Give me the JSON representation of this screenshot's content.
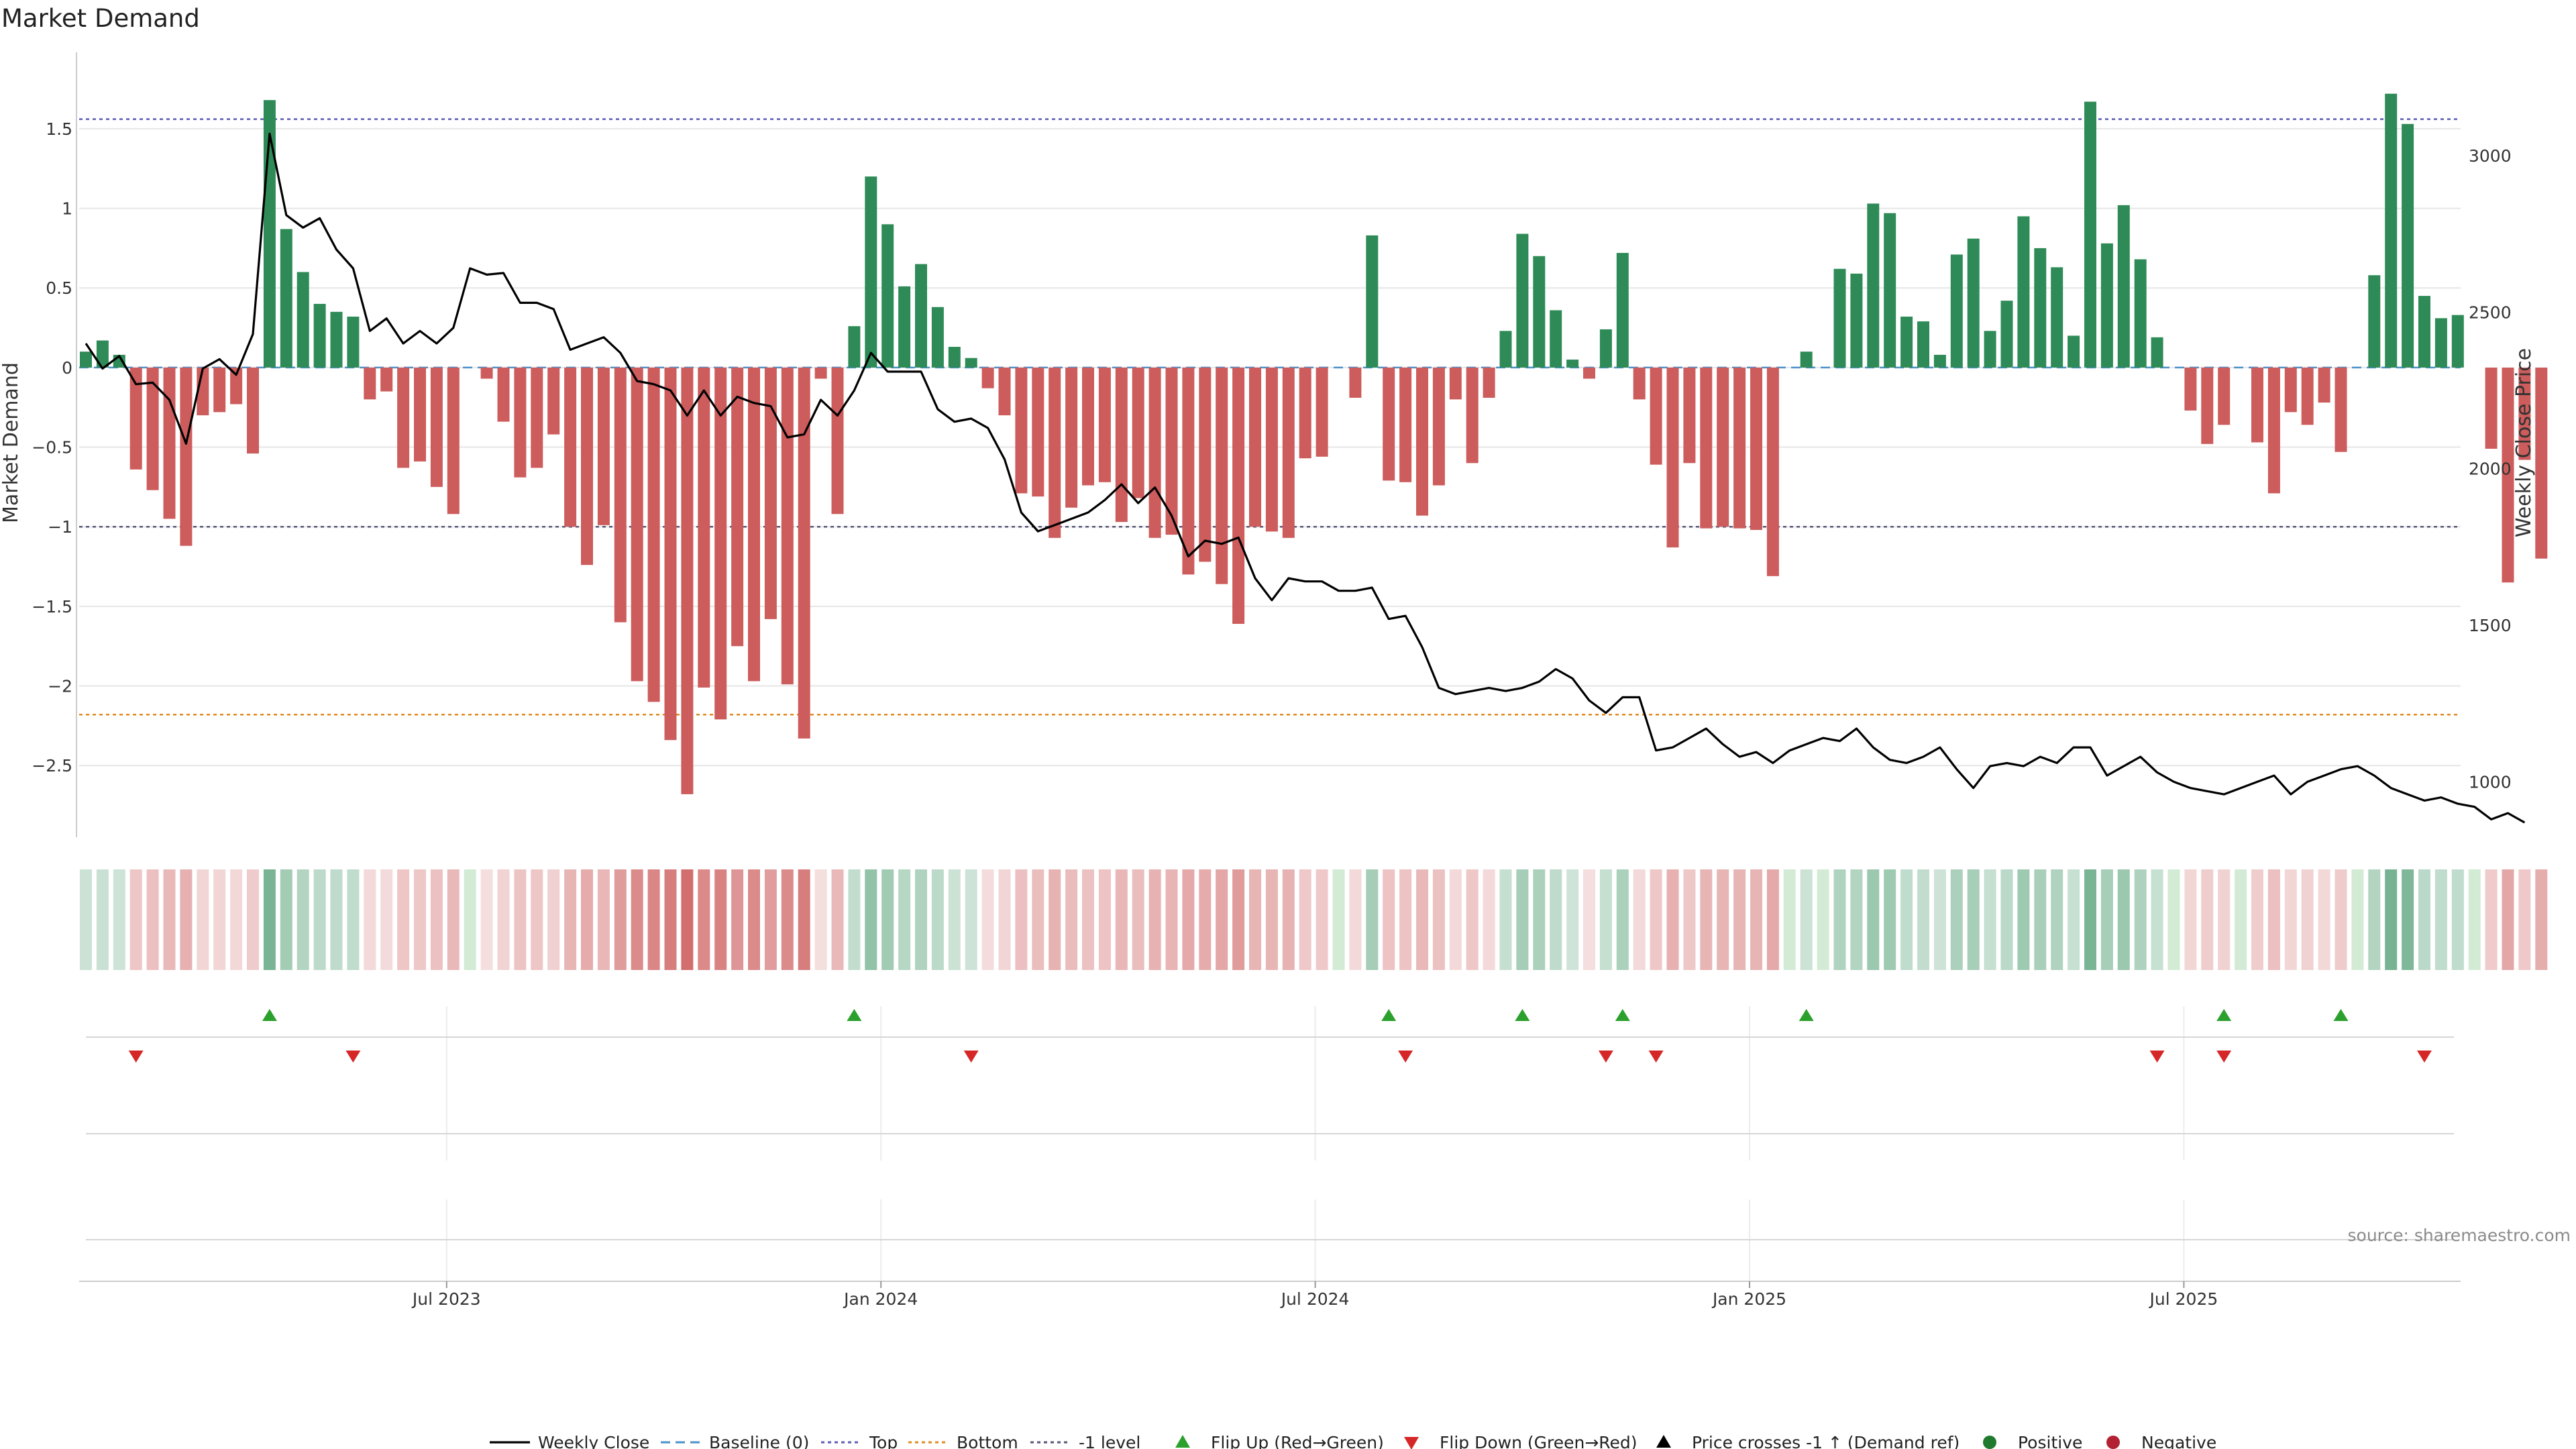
{
  "title": "Market Demand",
  "source": "source: sharemaestro.com",
  "colors": {
    "positive": "#2e8b57",
    "negative": "#cd5c5c",
    "price": "#000000",
    "top_line": "#5b5bb5",
    "bottom_line": "#e08a1e",
    "minus1_line": "#555577",
    "flip_up": "#2ca02c",
    "flip_down": "#d62728",
    "grid": "#e6e6e6",
    "axis": "#cccccc"
  },
  "chart_data": {
    "type": "bar",
    "title": "Market Demand",
    "ylabel": "Market Demand",
    "y2label": "Weekly Close Price",
    "ylim": [
      -2.95,
      1.98
    ],
    "y2lim": [
      823,
      3330
    ],
    "yticks": [
      1.5,
      1,
      0.5,
      0,
      -0.5,
      -1,
      -1.5,
      -2,
      -2.5
    ],
    "ytick_labels": [
      "1.5",
      "1",
      "0.5",
      "0",
      "−0.5",
      "−1",
      "−1.5",
      "−2",
      "−2.5"
    ],
    "y2ticks": [
      3000,
      2500,
      2000,
      1500,
      1000
    ],
    "y2tick_labels": [
      "3000",
      "2500",
      "2000",
      "1500",
      "1000"
    ],
    "x_ticks": [
      {
        "week": 22,
        "label": "Jul 2023"
      },
      {
        "week": 48,
        "label": "Jan 2024"
      },
      {
        "week": 74,
        "label": "Jul 2024"
      },
      {
        "week": 100,
        "label": "Jan 2025"
      },
      {
        "week": 126,
        "label": "Jul 2025"
      }
    ],
    "reference_lines": {
      "top": 1.56,
      "bottom": -2.18,
      "minus1": -1.0,
      "baseline": 0
    },
    "demand": [
      0.1,
      0.17,
      0.08,
      -0.64,
      -0.77,
      -0.95,
      -1.12,
      -0.3,
      -0.28,
      -0.23,
      -0.54,
      1.68,
      0.87,
      0.6,
      0.4,
      0.35,
      0.32,
      -0.2,
      -0.15,
      -0.63,
      -0.59,
      -0.75,
      -0.92,
      0.0,
      -0.07,
      -0.34,
      -0.69,
      -0.63,
      -0.42,
      -1.0,
      -1.24,
      -0.99,
      -1.6,
      -1.97,
      -2.1,
      -2.34,
      -2.68,
      -2.01,
      -2.21,
      -1.75,
      -1.97,
      -1.58,
      -1.99,
      -2.33,
      -0.07,
      -0.92,
      0.26,
      1.2,
      0.9,
      0.51,
      0.65,
      0.38,
      0.13,
      0.06,
      -0.13,
      -0.3,
      -0.79,
      -0.81,
      -1.07,
      -0.88,
      -0.74,
      -0.72,
      -0.97,
      -0.82,
      -1.07,
      -1.05,
      -1.3,
      -1.22,
      -1.36,
      -1.61,
      -1.0,
      -1.03,
      -1.07,
      -0.57,
      -0.56,
      0.0,
      -0.19,
      0.83,
      -0.71,
      -0.72,
      -0.93,
      -0.74,
      -0.2,
      -0.6,
      -0.19,
      0.23,
      0.84,
      0.7,
      0.36,
      0.05,
      -0.07,
      0.24,
      0.72,
      -0.2,
      -0.61,
      -1.13,
      -0.6,
      -1.01,
      -1.0,
      -1.01,
      -1.02,
      -1.31,
      0.0,
      0.1,
      0.0,
      0.62,
      0.59,
      1.03,
      0.97,
      0.32,
      0.29,
      0.08,
      0.71,
      0.81,
      0.23,
      0.42,
      0.95,
      0.75,
      0.63,
      0.2,
      1.67,
      0.78,
      1.02,
      0.68,
      0.19,
      0.0,
      -0.27,
      -0.48,
      -0.36,
      0.0,
      -0.47,
      -0.79,
      -0.28,
      -0.36,
      -0.22,
      -0.53,
      0.0,
      0.58,
      1.72,
      1.53,
      0.45,
      0.31,
      0.33,
      0.0,
      -0.51,
      -1.35,
      -0.58,
      -1.2
    ],
    "weekly_close": [
      2400,
      2320,
      2360,
      2270,
      2275,
      2220,
      2080,
      2320,
      2350,
      2300,
      2430,
      3070,
      2810,
      2770,
      2800,
      2700,
      2640,
      2440,
      2480,
      2400,
      2440,
      2400,
      2450,
      2640,
      2620,
      2625,
      2530,
      2530,
      2510,
      2380,
      2400,
      2420,
      2370,
      2280,
      2270,
      2250,
      2170,
      2250,
      2170,
      2230,
      2210,
      2200,
      2100,
      2110,
      2220,
      2170,
      2250,
      2370,
      2310,
      2310,
      2310,
      2190,
      2150,
      2160,
      2130,
      2030,
      1860,
      1800,
      1820,
      1840,
      1860,
      1900,
      1950,
      1890,
      1940,
      1850,
      1720,
      1770,
      1760,
      1780,
      1650,
      1580,
      1650,
      1640,
      1640,
      1610,
      1610,
      1620,
      1520,
      1530,
      1430,
      1300,
      1280,
      1290,
      1300,
      1290,
      1300,
      1320,
      1360,
      1330,
      1260,
      1220,
      1270,
      1270,
      1100,
      1110,
      1140,
      1170,
      1120,
      1080,
      1095,
      1060,
      1100,
      1120,
      1140,
      1130,
      1170,
      1110,
      1070,
      1060,
      1080,
      1110,
      1040,
      980,
      1050,
      1060,
      1050,
      1080,
      1060,
      1110,
      1110,
      1020,
      1050,
      1080,
      1030,
      1000,
      980,
      970,
      960,
      980,
      1000,
      1020,
      960,
      1000,
      1020,
      1040,
      1050,
      1020,
      980,
      960,
      940,
      950,
      930,
      920,
      880,
      900,
      870
    ],
    "flip_up_weeks": [
      11,
      46,
      78,
      86,
      92,
      103,
      128,
      135
    ],
    "flip_down_weeks": [
      3,
      16,
      53,
      79,
      91,
      94,
      124,
      128,
      140
    ],
    "legend": [
      {
        "key": "weekly_close",
        "label": "Weekly Close"
      },
      {
        "key": "baseline",
        "label": "Baseline (0)"
      },
      {
        "key": "top",
        "label": "Top"
      },
      {
        "key": "bottom",
        "label": "Bottom"
      },
      {
        "key": "minus1",
        "label": "-1 level"
      },
      {
        "key": "flip_up",
        "label": "Flip Up (Red→Green)"
      },
      {
        "key": "flip_down",
        "label": "Flip Down (Green→Red)"
      },
      {
        "key": "price_cross",
        "label": "Price crosses -1 ↑ (Demand ref)"
      },
      {
        "key": "positive",
        "label": "Positive"
      },
      {
        "key": "negative",
        "label": "Negative"
      }
    ]
  }
}
